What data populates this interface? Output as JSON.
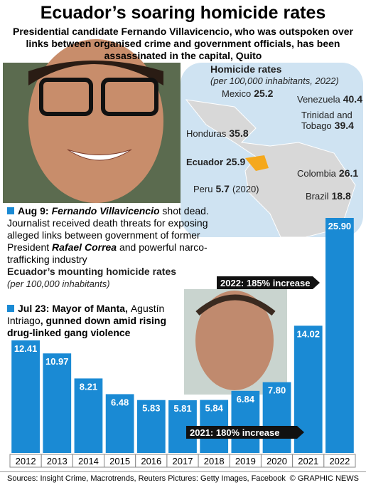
{
  "header": {
    "title": "Ecuador’s soaring homicide rates",
    "subtitle": "Presidential candidate Fernando Villavicencio, who was outspoken over links between organised crime and government officials, has been assassinated in the capital, Quito"
  },
  "map": {
    "title": "Homicide rates",
    "subtitle": "(per 100,000 inhabitants, 2022)",
    "labels": [
      {
        "name": "Mexico",
        "value": 25.2
      },
      {
        "name": "Venezuela",
        "value": 40.4
      },
      {
        "name": "Trinidad and Tobago",
        "value": 39.4
      },
      {
        "name": "Honduras",
        "value": 35.8
      },
      {
        "name": "Ecuador",
        "value": 25.9
      },
      {
        "name": "Colombia",
        "value": 26.1
      },
      {
        "name": "Peru",
        "value": 5.7,
        "note": "(2020)"
      },
      {
        "name": "Brazil",
        "value": 18.8
      }
    ]
  },
  "events": [
    {
      "date": "Aug 9:",
      "parts": [
        "Fernando Villavicencio",
        " shot dead. Journalist received death threats for exposing alleged links between government of former President ",
        "Rafael Correa",
        " and powerful narco-trafficking industry"
      ]
    },
    {
      "date": "Jul 23:",
      "parts": [
        "Mayor of Manta, ",
        "Agustín Intriago",
        ", gunned down amid rising drug-linked gang violence"
      ]
    }
  ],
  "chart_data": {
    "type": "bar",
    "title": "Ecuador’s mounting homicide rates",
    "subtitle": "(per 100,000 inhabitants)",
    "categories": [
      "2012",
      "2013",
      "2014",
      "2015",
      "2016",
      "2017",
      "2018",
      "2019",
      "2020",
      "2021",
      "2022"
    ],
    "values": [
      12.41,
      10.97,
      8.21,
      6.48,
      5.83,
      5.81,
      5.84,
      6.84,
      7.8,
      14.02,
      25.9
    ],
    "value_labels": [
      "12.41",
      "10.97",
      "8.21",
      "6.48",
      "5.83",
      "5.81",
      "5.84",
      "6.84",
      "7.80",
      "14.02",
      "25.90"
    ],
    "color": "#1a8ad4",
    "annotations": [
      "2022: 185% increase",
      "2021: 180% increase"
    ]
  },
  "footer": {
    "sources": "Sources: Insight Crime, Macrotrends, Reuters  Pictures: Getty Images, Facebook",
    "credit": "© GRAPHIC NEWS"
  }
}
